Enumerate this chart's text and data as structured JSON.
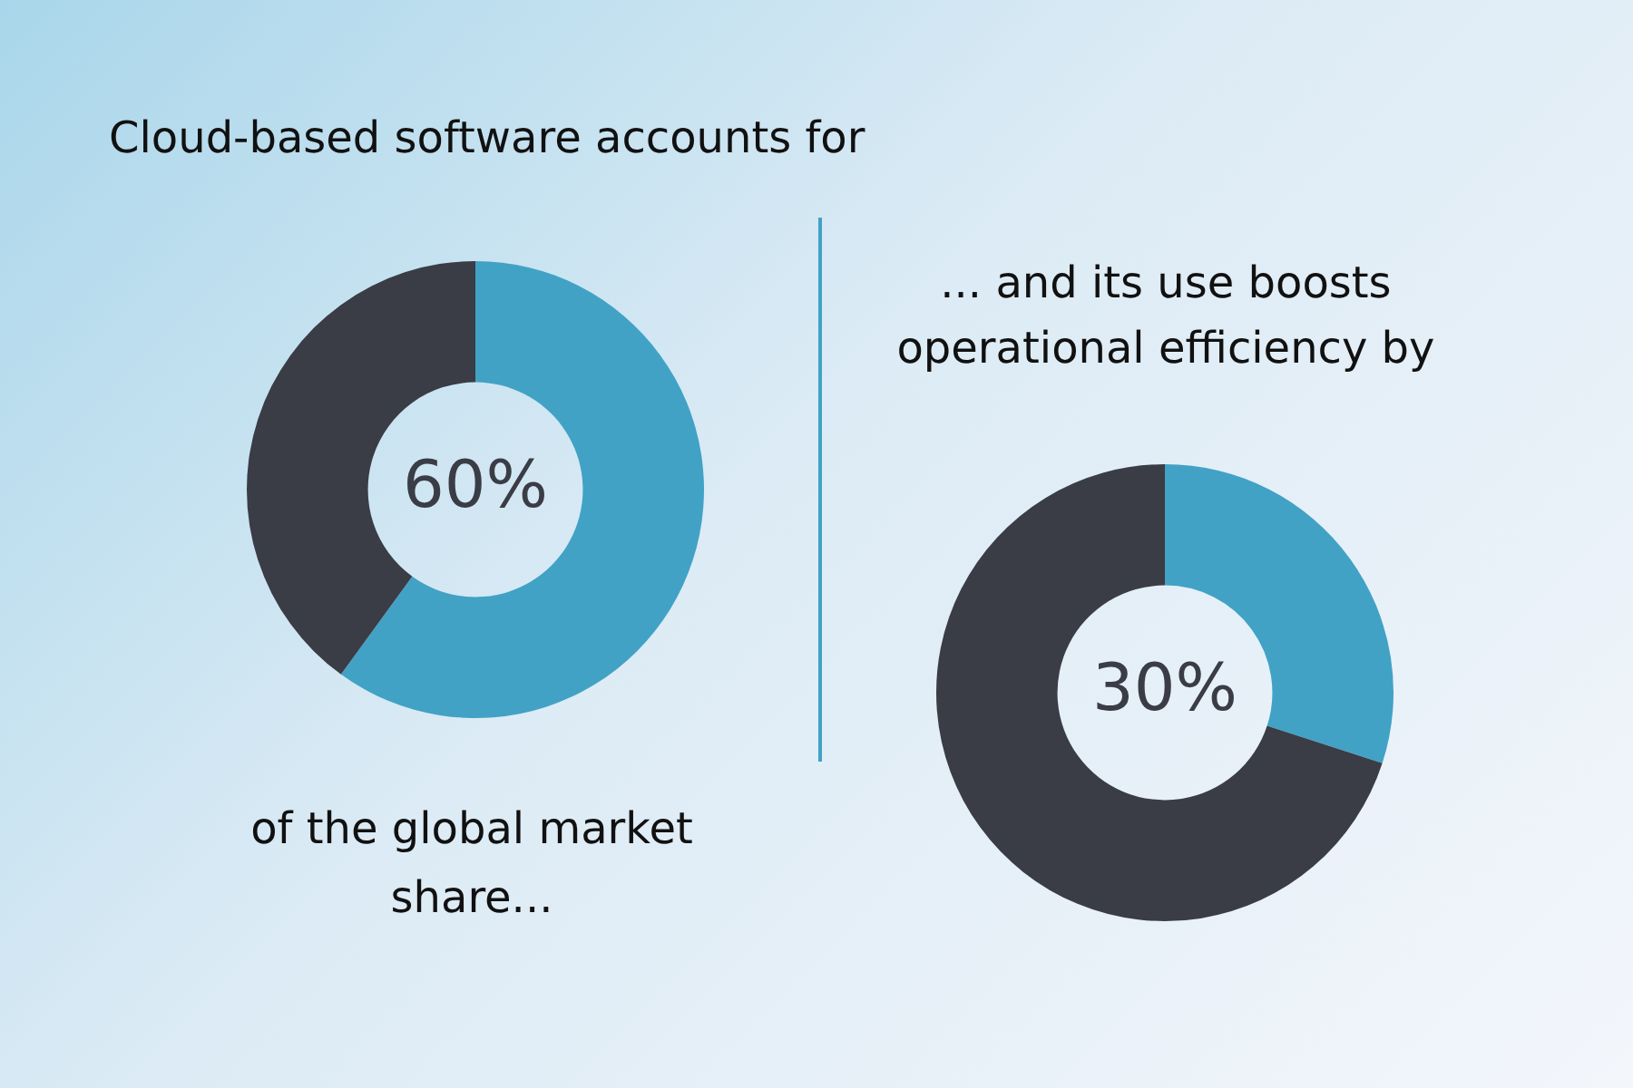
{
  "chart_data": [
    {
      "type": "donut",
      "title": "Cloud-based software accounts for",
      "categories": [
        null,
        null
      ],
      "values": [
        60,
        40
      ],
      "colors": [
        "#41a2c5",
        "#3a3c46"
      ],
      "value_labels": [
        "60%",
        null
      ],
      "annotations": [
        "of the global market share..."
      ]
    },
    {
      "type": "donut",
      "title": "... and its use boosts operational efficiency by",
      "categories": [
        null,
        null
      ],
      "values": [
        30,
        70
      ],
      "colors": [
        "#41a2c5",
        "#3a3c46"
      ],
      "value_labels": [
        "30%",
        null
      ]
    }
  ]
}
